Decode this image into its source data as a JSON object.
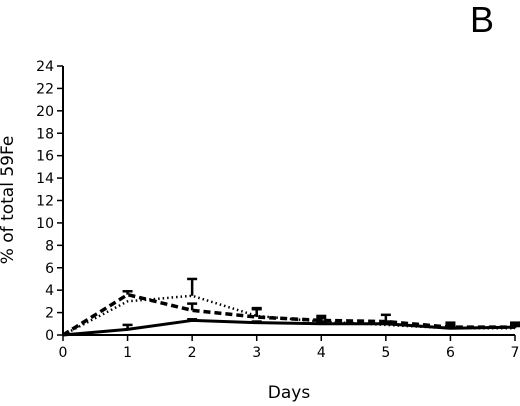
{
  "panel_label": "B",
  "chart_data": {
    "type": "line",
    "title": "",
    "xlabel": "Days",
    "ylabel": "% of total 59Fe",
    "x": [
      0,
      1,
      2,
      3,
      4,
      5,
      6,
      7
    ],
    "xlim": [
      0,
      7
    ],
    "ylim": [
      0,
      24
    ],
    "x_ticks": [
      "0",
      "1",
      "2",
      "3",
      "4",
      "5",
      "6",
      "7"
    ],
    "y_ticks": [
      "0",
      "2",
      "4",
      "6",
      "8",
      "10",
      "12",
      "14",
      "16",
      "18",
      "20",
      "22",
      "24"
    ],
    "grid": false,
    "legend": "none",
    "series": [
      {
        "style": "solid",
        "values": [
          0,
          0.5,
          1.3,
          1.1,
          1.0,
          1.0,
          0.6,
          0.7
        ],
        "error_upper": [
          0,
          0.9,
          1.4,
          1.2,
          1.2,
          1.2,
          0.8,
          0.9
        ]
      },
      {
        "style": "dashed",
        "values": [
          0,
          3.6,
          2.2,
          1.6,
          1.3,
          1.2,
          0.7,
          0.7
        ],
        "error_upper": [
          0,
          3.9,
          2.8,
          2.4,
          1.7,
          1.8,
          1.1,
          1.1
        ]
      },
      {
        "style": "dotted",
        "values": [
          0,
          3.0,
          3.5,
          1.7,
          1.2,
          0.9,
          0.6,
          0.6
        ],
        "error_upper": [
          0,
          3.0,
          5.0,
          2.3,
          1.5,
          1.0,
          0.9,
          0.8
        ]
      }
    ]
  }
}
